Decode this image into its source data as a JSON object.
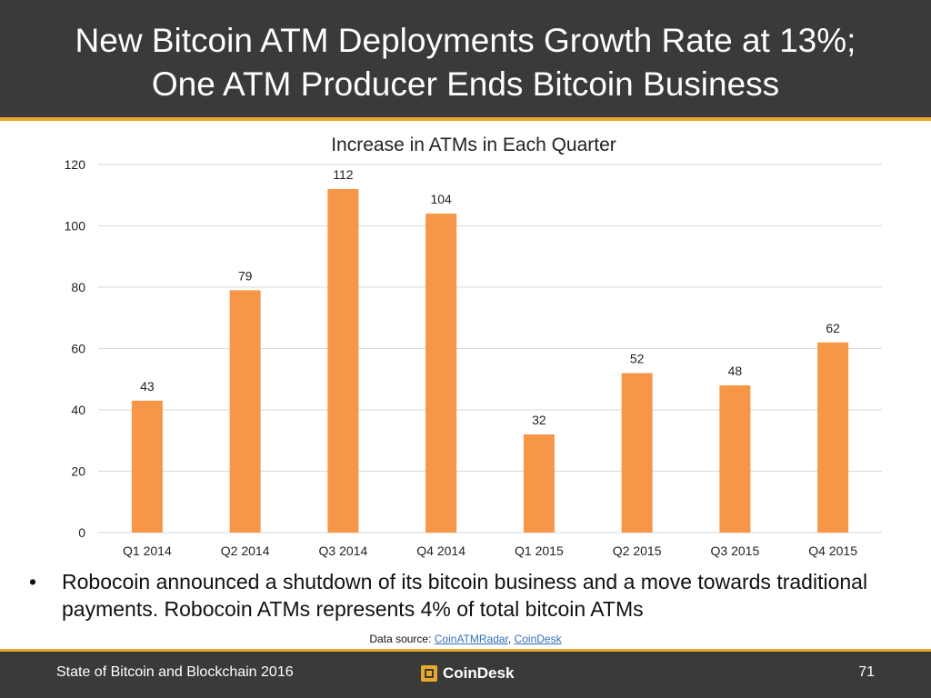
{
  "slide": {
    "title_line1": "New Bitcoin ATM Deployments Growth Rate at 13%;",
    "title_line2": "One ATM Producer Ends Bitcoin Business",
    "bullet_symbol": "•",
    "bullet": "Robocoin announced a shutdown of its bitcoin business and a move towards traditional payments. Robocoin ATMs represents 4% of total bitcoin ATMs",
    "source_prefix": "Data source: ",
    "source_link1": "CoinATMRadar",
    "source_sep": ", ",
    "source_link2": "CoinDesk"
  },
  "footer": {
    "left": "State of Bitcoin and Blockchain 2016",
    "brand": "CoinDesk",
    "page": "71"
  },
  "colors": {
    "header_bg": "#3a3a38",
    "accent": "#e8a82e",
    "bar": "#f79646",
    "grid": "#d9d9d9"
  },
  "chart_data": {
    "type": "bar",
    "title": "Increase in ATMs in Each Quarter",
    "categories": [
      "Q1 2014",
      "Q2 2014",
      "Q3 2014",
      "Q4 2014",
      "Q1 2015",
      "Q2 2015",
      "Q3 2015",
      "Q4 2015"
    ],
    "values": [
      43,
      79,
      112,
      104,
      32,
      52,
      48,
      62
    ],
    "data_labels": [
      "43",
      "79",
      "112",
      "104",
      "32",
      "52",
      "48",
      "62"
    ],
    "yticks": [
      0,
      20,
      40,
      60,
      80,
      100,
      120
    ],
    "ylim": [
      0,
      120
    ],
    "xlabel": "",
    "ylabel": "",
    "grid": true,
    "legend": "none"
  }
}
